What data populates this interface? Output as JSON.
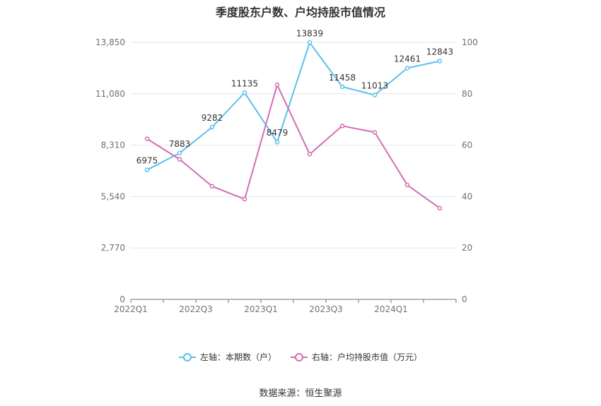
{
  "title": "季度股东户数、户均持股市值情况",
  "source": "数据来源：恒生聚源",
  "chart_data": {
    "type": "line",
    "title": "季度股东户数、户均持股市值情况",
    "x": [
      "2022Q1",
      "2022Q2",
      "2022Q3",
      "2022Q4",
      "2023Q1",
      "2023Q2",
      "2023Q3",
      "2023Q4",
      "2024Q1",
      "2024Q2"
    ],
    "x_tick_labels": [
      "2022Q1",
      "2022Q3",
      "2023Q1",
      "2023Q3",
      "2024Q1"
    ],
    "y_left": {
      "ticks": [
        "0",
        "2,770",
        "5,540",
        "8,310",
        "11,080",
        "13,850"
      ],
      "lim": [
        0,
        13850
      ]
    },
    "y_right": {
      "ticks": [
        "0",
        "20",
        "40",
        "60",
        "80",
        "100"
      ],
      "lim": [
        0,
        100
      ]
    },
    "series": [
      {
        "name": "左轴：本期数（户）",
        "axis": "left",
        "color": "#5bc0eb",
        "values": [
          6975,
          7883,
          9282,
          11135,
          8479,
          13839,
          11458,
          11013,
          12461,
          12843
        ],
        "labels": [
          "6975",
          "7883",
          "9282",
          "11135",
          "8479",
          "13839",
          "11458",
          "11013",
          "12461",
          "12843"
        ]
      },
      {
        "name": "右轴：户均持股市值（万元）",
        "axis": "right",
        "color": "#d46eb3",
        "values": [
          62.5,
          54.5,
          44.0,
          39.0,
          83.5,
          56.5,
          67.5,
          65.0,
          44.5,
          35.5
        ]
      }
    ],
    "legend_position": "bottom",
    "grid": true
  }
}
